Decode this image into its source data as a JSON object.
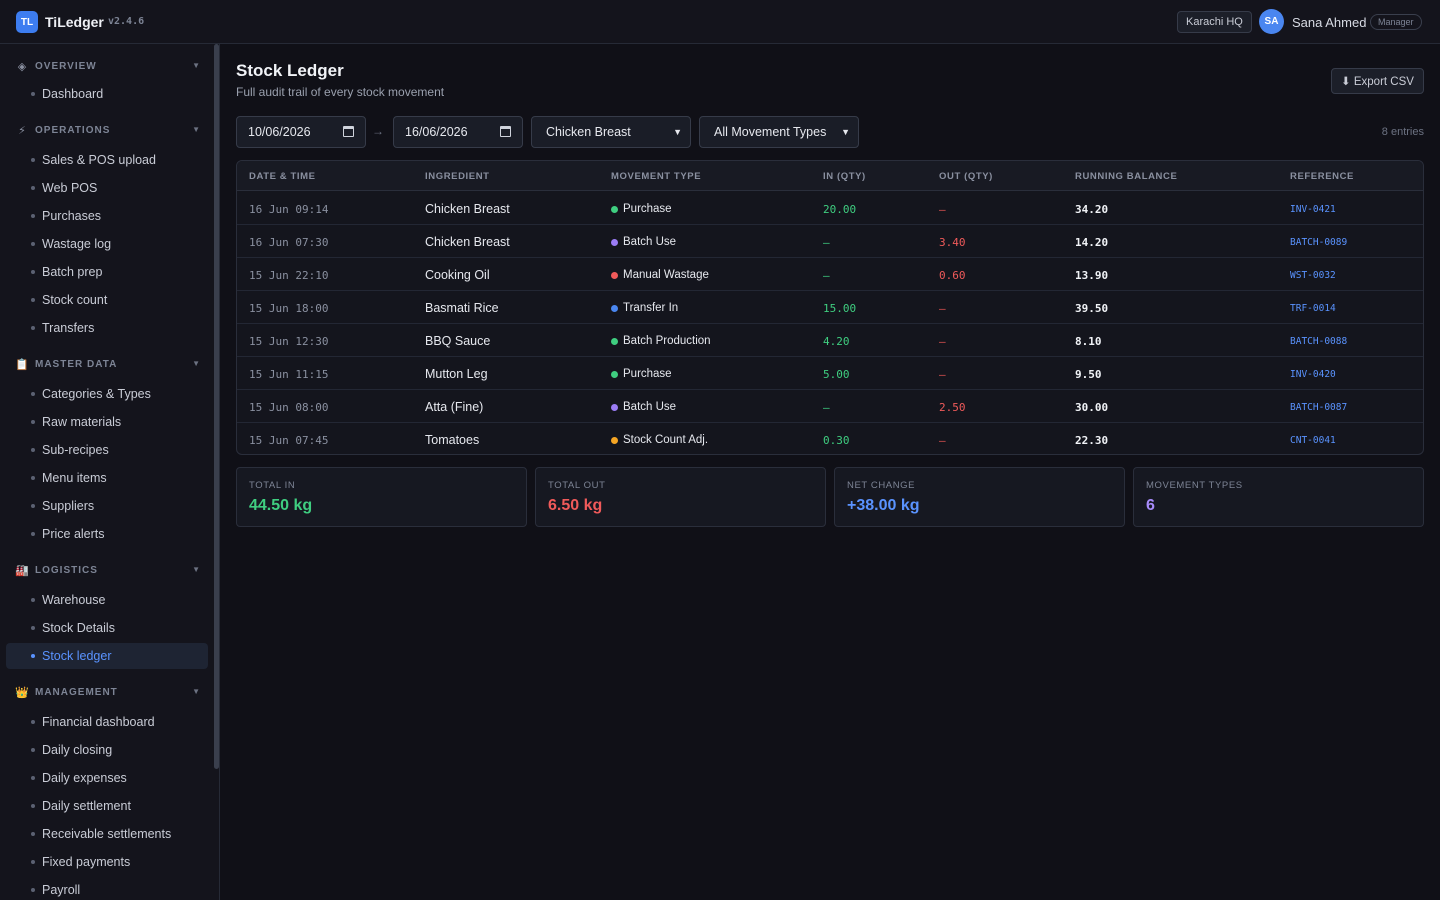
{
  "app": {
    "logo": "TL",
    "name": "TiLedger",
    "version": "v2.4.6"
  },
  "header": {
    "branch": "Karachi HQ",
    "user_initials": "SA",
    "user_name": "Sana Ahmed",
    "user_role": "Manager"
  },
  "sidebar": {
    "groups": [
      {
        "label": "OVERVIEW",
        "icon": "diamond-icon",
        "items": [
          "Dashboard"
        ]
      },
      {
        "label": "OPERATIONS",
        "icon": "lightning-icon",
        "items": [
          "Sales & POS upload",
          "Web POS",
          "Purchases",
          "Wastage log",
          "Batch prep",
          "Stock count",
          "Transfers"
        ]
      },
      {
        "label": "MASTER DATA",
        "icon": "clipboard-icon",
        "items": [
          "Categories & Types",
          "Raw materials",
          "Sub-recipes",
          "Menu items",
          "Suppliers",
          "Price alerts"
        ]
      },
      {
        "label": "LOGISTICS",
        "icon": "factory-icon",
        "items": [
          "Warehouse",
          "Stock Details",
          "Stock ledger"
        ]
      },
      {
        "label": "MANAGEMENT",
        "icon": "crown-icon",
        "items": [
          "Financial dashboard",
          "Daily closing",
          "Daily expenses",
          "Daily settlement",
          "Receivable settlements",
          "Fixed payments",
          "Payroll"
        ]
      }
    ],
    "active_item": "Stock ledger"
  },
  "page": {
    "title": "Stock Ledger",
    "subtitle": "Full audit trail of every stock movement",
    "export_label": "⬇ Export CSV"
  },
  "filters": {
    "date_from": "10/06/2026",
    "date_arrow": "→",
    "date_to": "16/06/2026",
    "ingredient": "Chicken Breast",
    "movement_type": "All Movement Types",
    "entries": "8 entries"
  },
  "table": {
    "columns": [
      "DATE & TIME",
      "INGREDIENT",
      "MOVEMENT TYPE",
      "IN (QTY)",
      "OUT (QTY)",
      "RUNNING BALANCE",
      "REFERENCE"
    ],
    "rows": [
      {
        "date": "16 Jun 09:14",
        "ingredient": "Chicken Breast",
        "type": "Purchase",
        "type_color": "#3fce80",
        "in": "20.00",
        "out": "—",
        "balance": "34.20",
        "ref": "INV-0421"
      },
      {
        "date": "16 Jun 07:30",
        "ingredient": "Chicken Breast",
        "type": "Batch Use",
        "type_color": "#9b7cf5",
        "in": "—",
        "out": "3.40",
        "balance": "14.20",
        "ref": "BATCH-0089"
      },
      {
        "date": "15 Jun 22:10",
        "ingredient": "Cooking Oil",
        "type": "Manual Wastage",
        "type_color": "#f05a5a",
        "in": "—",
        "out": "0.60",
        "balance": "13.90",
        "ref": "WST-0032"
      },
      {
        "date": "15 Jun 18:00",
        "ingredient": "Basmati Rice",
        "type": "Transfer In",
        "type_color": "#4a86f0",
        "in": "15.00",
        "out": "—",
        "balance": "39.50",
        "ref": "TRF-0014"
      },
      {
        "date": "15 Jun 12:30",
        "ingredient": "BBQ Sauce",
        "type": "Batch Production",
        "type_color": "#3fce80",
        "in": "4.20",
        "out": "—",
        "balance": "8.10",
        "ref": "BATCH-0088"
      },
      {
        "date": "15 Jun 11:15",
        "ingredient": "Mutton Leg",
        "type": "Purchase",
        "type_color": "#3fce80",
        "in": "5.00",
        "out": "—",
        "balance": "9.50",
        "ref": "INV-0420"
      },
      {
        "date": "15 Jun 08:00",
        "ingredient": "Atta (Fine)",
        "type": "Batch Use",
        "type_color": "#9b7cf5",
        "in": "—",
        "out": "2.50",
        "balance": "30.00",
        "ref": "BATCH-0087"
      },
      {
        "date": "15 Jun 07:45",
        "ingredient": "Tomatoes",
        "type": "Stock Count Adj.",
        "type_color": "#f5a524",
        "in": "0.30",
        "out": "—",
        "balance": "22.30",
        "ref": "CNT-0041"
      }
    ]
  },
  "stats": [
    {
      "label": "TOTAL IN",
      "value": "44.50 kg",
      "color": "#3fce80"
    },
    {
      "label": "TOTAL OUT",
      "value": "6.50 kg",
      "color": "#f05a5a"
    },
    {
      "label": "NET CHANGE",
      "value": "+38.00 kg",
      "color": "#5a93ff"
    },
    {
      "label": "MOVEMENT TYPES",
      "value": "6",
      "color": "#a78bfa"
    }
  ]
}
